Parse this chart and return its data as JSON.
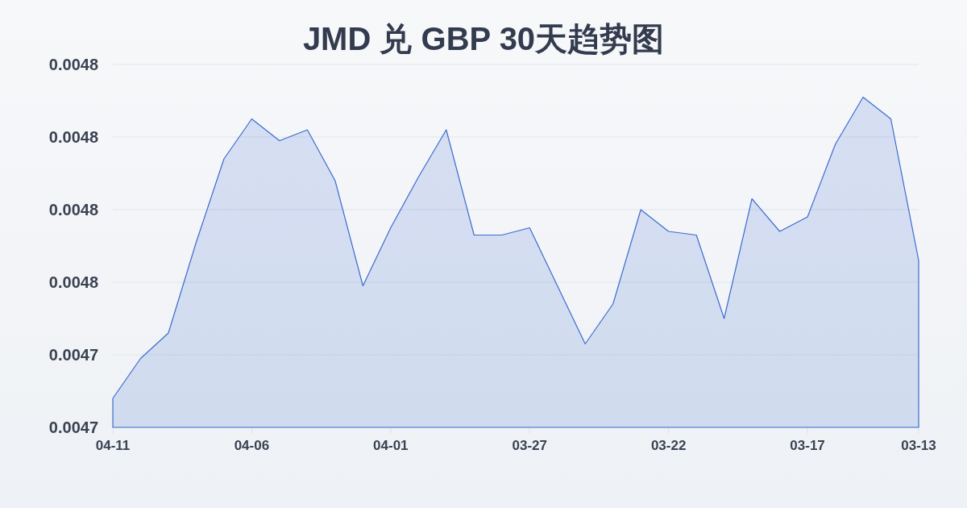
{
  "chart_data": {
    "type": "area",
    "title": "JMD 兑 GBP 30天趋势图",
    "categories": [
      "04-11",
      null,
      null,
      null,
      null,
      "04-06",
      null,
      null,
      null,
      null,
      "04-01",
      null,
      null,
      null,
      null,
      "03-27",
      null,
      null,
      null,
      null,
      "03-22",
      null,
      null,
      null,
      null,
      "03-17",
      null,
      null,
      null,
      "03-13"
    ],
    "series": [
      {
        "color": "#3b6ccf",
        "values": [
          0.004728,
          0.004739,
          0.004746,
          0.004771,
          0.004794,
          0.004805,
          0.004799,
          0.004802,
          0.004788,
          0.004759,
          0.004775,
          0.004789,
          0.004802,
          0.004773,
          0.004773,
          0.004775,
          0.004759,
          0.004743,
          0.004754,
          0.00478,
          0.004774,
          0.004773,
          0.00475,
          0.004783,
          0.004774,
          0.004778,
          0.004798,
          0.004811,
          0.004805,
          0.004766
        ]
      }
    ],
    "ylim": [
      0.00472,
      0.00482
    ],
    "yticks": [
      {
        "value": 0.00472,
        "label": "0.0047"
      },
      {
        "value": 0.00474,
        "label": "0.0047"
      },
      {
        "value": 0.00476,
        "label": "0.0048"
      },
      {
        "value": 0.00478,
        "label": "0.0048"
      },
      {
        "value": 0.0048,
        "label": "0.0048"
      },
      {
        "value": 0.00482,
        "label": "0.0048"
      }
    ],
    "grid": "y"
  }
}
